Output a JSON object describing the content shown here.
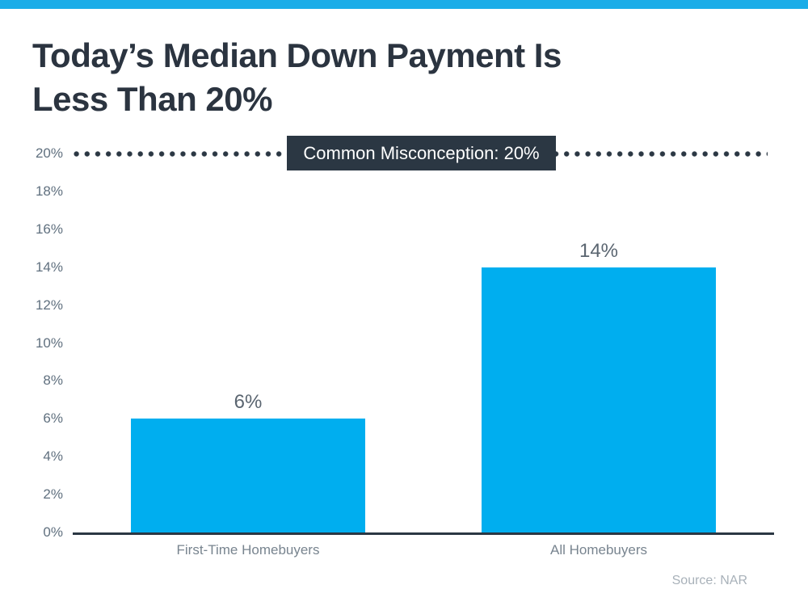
{
  "page": {
    "title_lines": [
      "Today’s Median Down Payment Is",
      "Less Than 20%"
    ],
    "source": "Source: NAR"
  },
  "chart_data": {
    "type": "bar",
    "title": "Today’s Median Down Payment Is Less Than 20%",
    "categories": [
      "First-Time Homebuyers",
      "All Homebuyers"
    ],
    "values": [
      6,
      14
    ],
    "value_labels": [
      "6%",
      "14%"
    ],
    "xlabel": "",
    "ylabel": "",
    "ylim": [
      0,
      20
    ],
    "ytick_step": 2,
    "ytick_labels": [
      "0%",
      "2%",
      "4%",
      "6%",
      "8%",
      "10%",
      "12%",
      "14%",
      "16%",
      "18%",
      "20%"
    ],
    "grid": false,
    "legend": "none",
    "annotation": {
      "text": "Common Misconception: 20%",
      "value": 20,
      "style": "dotted-line-with-dark-box"
    },
    "source": "Source: NAR"
  },
  "colors": {
    "accent_bar": "#1BADE8",
    "bar_fill": "#00AEEF",
    "dark_slate": "#2B3743",
    "title_text": "#2B3440",
    "tick_text": "#60707F",
    "value_text": "#5A6570",
    "category_text": "#78848F",
    "source_text": "#A8B1B9",
    "background": "#FFFFFF"
  }
}
